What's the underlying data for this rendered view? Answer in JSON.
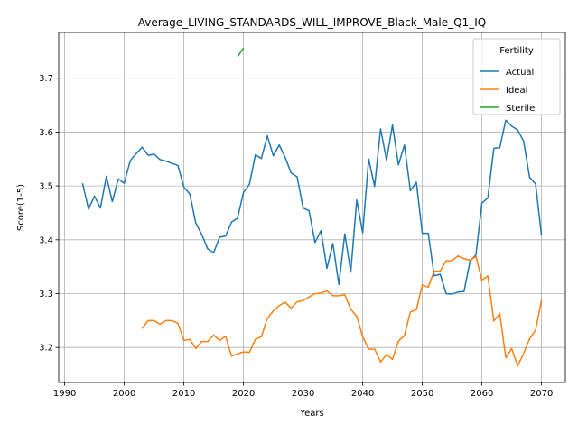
{
  "chart_data": {
    "type": "line",
    "title": "Average_LIVING_STANDARDS_WILL_IMPROVE_Black_Male_Q1_IQ",
    "xlabel": "Years",
    "ylabel": "Score(1-5)",
    "xlim": [
      1989,
      2074
    ],
    "ylim": [
      3.135,
      3.785
    ],
    "xticks": [
      1990,
      2000,
      2010,
      2020,
      2030,
      2040,
      2050,
      2060,
      2070
    ],
    "yticks": [
      3.2,
      3.3,
      3.4,
      3.5,
      3.6,
      3.7
    ],
    "grid": true,
    "legend": {
      "title": "Fertility",
      "placement": "top-right"
    },
    "series": [
      {
        "name": "Actual",
        "color": "#1f77b4",
        "x": [
          1993,
          1994,
          1995,
          1996,
          1997,
          1998,
          1999,
          2000,
          2001,
          2002,
          2003,
          2004,
          2005,
          2006,
          2007,
          2008,
          2009,
          2010,
          2011,
          2012,
          2013,
          2014,
          2015,
          2016,
          2017,
          2018,
          2019,
          2020,
          2021,
          2022,
          2023,
          2024,
          2025,
          2026,
          2027,
          2028,
          2029,
          2030,
          2031,
          2032,
          2033,
          2034,
          2035,
          2036,
          2037,
          2038,
          2039,
          2040,
          2041,
          2042,
          2043,
          2044,
          2045,
          2046,
          2047,
          2048,
          2049,
          2050,
          2051,
          2052,
          2053,
          2054,
          2055,
          2056,
          2057,
          2058,
          2059,
          2060,
          2061,
          2062,
          2063,
          2064,
          2065,
          2066,
          2067,
          2068,
          2069,
          2070
        ],
        "values": [
          3.505,
          3.457,
          3.481,
          3.459,
          3.518,
          3.471,
          3.513,
          3.505,
          3.547,
          3.56,
          3.572,
          3.557,
          3.559,
          3.549,
          3.546,
          3.542,
          3.538,
          3.498,
          3.485,
          3.431,
          3.41,
          3.383,
          3.376,
          3.405,
          3.407,
          3.433,
          3.44,
          3.488,
          3.503,
          3.558,
          3.551,
          3.593,
          3.556,
          3.576,
          3.553,
          3.524,
          3.517,
          3.459,
          3.454,
          3.395,
          3.417,
          3.347,
          3.393,
          3.317,
          3.411,
          3.34,
          3.474,
          3.413,
          3.55,
          3.499,
          3.606,
          3.548,
          3.613,
          3.539,
          3.576,
          3.491,
          3.507,
          3.412,
          3.412,
          3.333,
          3.336,
          3.3,
          3.299,
          3.303,
          3.304,
          3.36,
          3.372,
          3.468,
          3.478,
          3.57,
          3.571,
          3.622,
          3.611,
          3.604,
          3.583,
          3.516,
          3.504,
          3.408
        ]
      },
      {
        "name": "Ideal",
        "color": "#ff7f0e",
        "x": [
          2003,
          2004,
          2005,
          2006,
          2007,
          2008,
          2009,
          2010,
          2011,
          2012,
          2013,
          2014,
          2015,
          2016,
          2017,
          2018,
          2019,
          2020,
          2021,
          2022,
          2023,
          2024,
          2025,
          2026,
          2027,
          2028,
          2029,
          2030,
          2031,
          2032,
          2033,
          2034,
          2035,
          2036,
          2037,
          2038,
          2039,
          2040,
          2041,
          2042,
          2043,
          2044,
          2045,
          2046,
          2047,
          2048,
          2049,
          2050,
          2051,
          2052,
          2053,
          2054,
          2055,
          2056,
          2057,
          2058,
          2059,
          2060,
          2061,
          2062,
          2063,
          2064,
          2065,
          2066,
          2067,
          2068,
          2069,
          2070
        ],
        "values": [
          3.235,
          3.25,
          3.25,
          3.243,
          3.25,
          3.25,
          3.245,
          3.213,
          3.215,
          3.198,
          3.211,
          3.211,
          3.223,
          3.213,
          3.221,
          3.184,
          3.188,
          3.192,
          3.191,
          3.215,
          3.22,
          3.254,
          3.268,
          3.278,
          3.284,
          3.273,
          3.285,
          3.287,
          3.294,
          3.3,
          3.301,
          3.305,
          3.296,
          3.296,
          3.298,
          3.271,
          3.258,
          3.22,
          3.197,
          3.197,
          3.173,
          3.187,
          3.178,
          3.212,
          3.222,
          3.266,
          3.27,
          3.316,
          3.312,
          3.342,
          3.342,
          3.361,
          3.361,
          3.37,
          3.365,
          3.362,
          3.369,
          3.325,
          3.333,
          3.249,
          3.263,
          3.181,
          3.198,
          3.166,
          3.189,
          3.216,
          3.232,
          3.288
        ]
      },
      {
        "name": "Sterile",
        "color": "#2ca02c",
        "x": [
          2019,
          2020
        ],
        "values": [
          3.74,
          3.756
        ]
      }
    ]
  }
}
